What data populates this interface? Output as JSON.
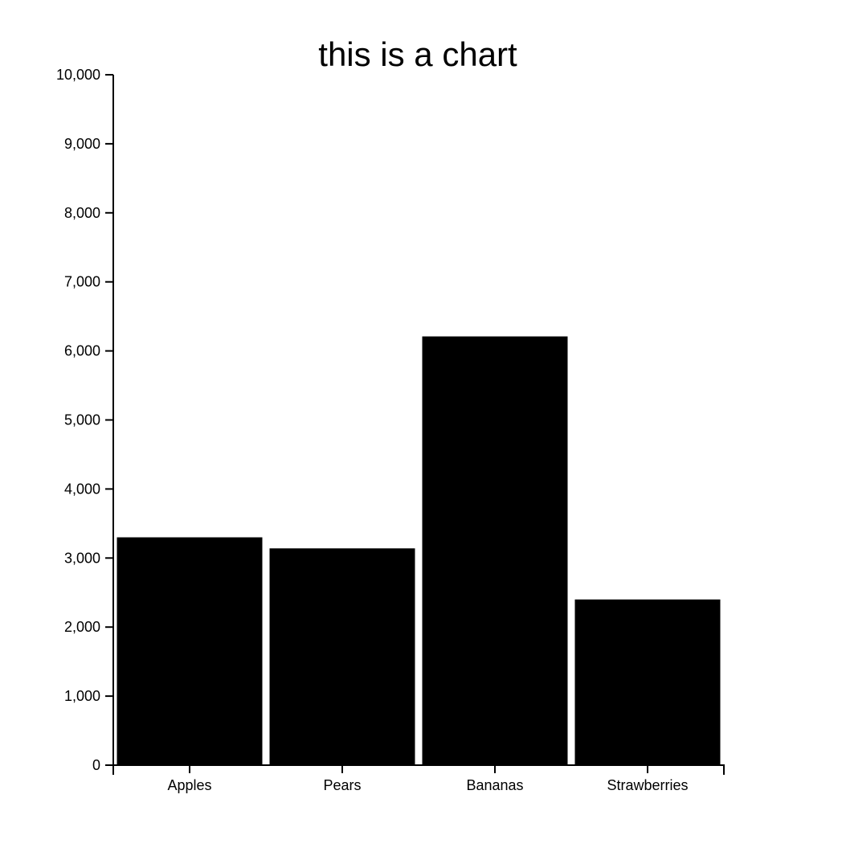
{
  "chart_data": {
    "type": "bar",
    "title": "this is a chart",
    "xlabel": "",
    "ylabel": "",
    "categories": [
      "Apples",
      "Pears",
      "Bananas",
      "Strawberries"
    ],
    "values": [
      3300,
      3140,
      6210,
      2400
    ],
    "ylim": [
      0,
      10000
    ],
    "y_ticks": [
      0,
      1000,
      2000,
      3000,
      4000,
      5000,
      6000,
      7000,
      8000,
      9000,
      10000
    ],
    "y_tick_labels": [
      "0",
      "1,000",
      "2,000",
      "3,000",
      "4,000",
      "5,000",
      "6,000",
      "7,000",
      "8,000",
      "9,000",
      "10,000"
    ],
    "grid": false,
    "legend": "none",
    "colors": {
      "bar": "#000000",
      "axis": "#000000",
      "text": "#000000",
      "background": "#ffffff"
    }
  }
}
